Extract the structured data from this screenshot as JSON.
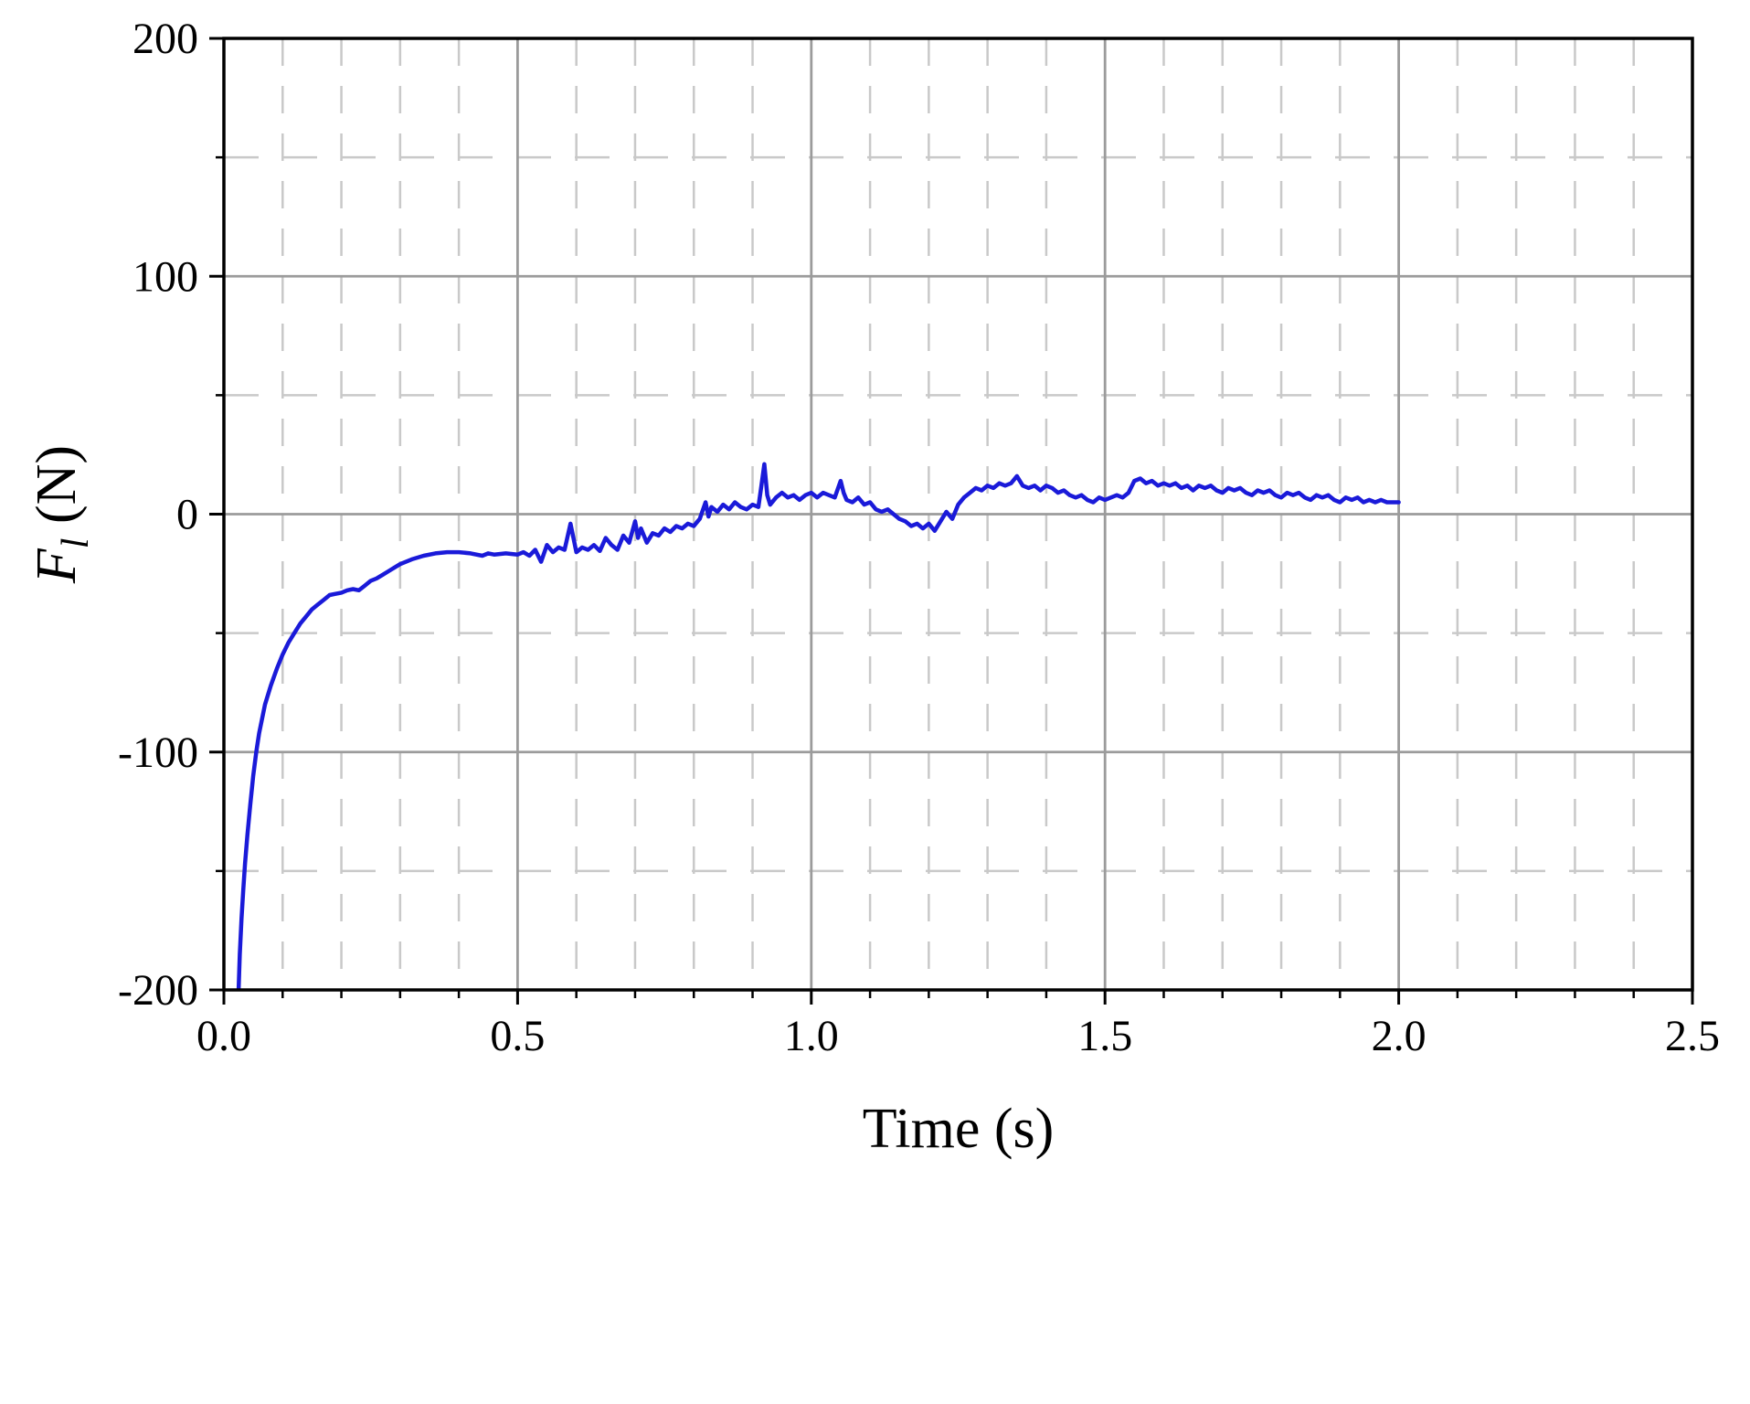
{
  "figure": {
    "background": "#ffffff",
    "frame_color": "#000000"
  },
  "chart_data": {
    "type": "line",
    "title": "",
    "xlabel": "Time (s)",
    "ylabel": "F_l (N)",
    "ylabel_parts": {
      "var": "F",
      "sub": "l",
      "rest": " (N)"
    },
    "xlim": [
      0.0,
      2.5
    ],
    "ylim": [
      -200,
      200
    ],
    "x_major_ticks": [
      0.0,
      0.5,
      1.0,
      1.5,
      2.0,
      2.5
    ],
    "x_tick_labels": [
      "0.0",
      "0.5",
      "1.0",
      "1.5",
      "2.0",
      "2.5"
    ],
    "x_minor_step": 0.1,
    "y_major_ticks": [
      -200,
      -100,
      0,
      100,
      200
    ],
    "y_tick_labels": [
      "-200",
      "-100",
      "0",
      "100",
      "200"
    ],
    "y_minor_step": 50,
    "grid": {
      "major": true,
      "minor": true,
      "major_color": "#9b9b9b",
      "minor_color": "#c9c9c9",
      "major_style": "solid",
      "minor_style": "dashed"
    },
    "legend": "none",
    "series": [
      {
        "name": "F_l",
        "color": "#1a1ad9",
        "points": [
          [
            0.025,
            -200
          ],
          [
            0.027,
            -185
          ],
          [
            0.03,
            -170
          ],
          [
            0.033,
            -158
          ],
          [
            0.036,
            -147
          ],
          [
            0.04,
            -135
          ],
          [
            0.045,
            -122
          ],
          [
            0.05,
            -110
          ],
          [
            0.055,
            -100
          ],
          [
            0.06,
            -92
          ],
          [
            0.065,
            -86
          ],
          [
            0.07,
            -80
          ],
          [
            0.075,
            -76
          ],
          [
            0.08,
            -72
          ],
          [
            0.09,
            -65
          ],
          [
            0.1,
            -59
          ],
          [
            0.11,
            -54
          ],
          [
            0.12,
            -50
          ],
          [
            0.13,
            -46
          ],
          [
            0.14,
            -43
          ],
          [
            0.15,
            -40
          ],
          [
            0.16,
            -38
          ],
          [
            0.17,
            -36
          ],
          [
            0.18,
            -34
          ],
          [
            0.19,
            -33.5
          ],
          [
            0.2,
            -33
          ],
          [
            0.21,
            -32
          ],
          [
            0.22,
            -31.5
          ],
          [
            0.23,
            -32
          ],
          [
            0.24,
            -30
          ],
          [
            0.25,
            -28
          ],
          [
            0.26,
            -27
          ],
          [
            0.27,
            -25.5
          ],
          [
            0.28,
            -24
          ],
          [
            0.29,
            -22.5
          ],
          [
            0.3,
            -21
          ],
          [
            0.32,
            -19
          ],
          [
            0.34,
            -17.5
          ],
          [
            0.36,
            -16.5
          ],
          [
            0.38,
            -16
          ],
          [
            0.4,
            -16
          ],
          [
            0.42,
            -16.5
          ],
          [
            0.44,
            -17.5
          ],
          [
            0.45,
            -16.5
          ],
          [
            0.46,
            -17
          ],
          [
            0.48,
            -16.5
          ],
          [
            0.5,
            -17
          ],
          [
            0.51,
            -16
          ],
          [
            0.52,
            -17.5
          ],
          [
            0.53,
            -15
          ],
          [
            0.54,
            -20
          ],
          [
            0.55,
            -13
          ],
          [
            0.56,
            -16
          ],
          [
            0.57,
            -14
          ],
          [
            0.58,
            -15
          ],
          [
            0.59,
            -4
          ],
          [
            0.6,
            -16
          ],
          [
            0.61,
            -14
          ],
          [
            0.62,
            -15
          ],
          [
            0.63,
            -13
          ],
          [
            0.64,
            -15.5
          ],
          [
            0.65,
            -10
          ],
          [
            0.66,
            -13
          ],
          [
            0.67,
            -15
          ],
          [
            0.68,
            -9
          ],
          [
            0.69,
            -12
          ],
          [
            0.7,
            -3
          ],
          [
            0.705,
            -10
          ],
          [
            0.71,
            -6
          ],
          [
            0.72,
            -12
          ],
          [
            0.73,
            -8
          ],
          [
            0.74,
            -9
          ],
          [
            0.75,
            -6
          ],
          [
            0.76,
            -7.5
          ],
          [
            0.77,
            -5
          ],
          [
            0.78,
            -6
          ],
          [
            0.79,
            -4
          ],
          [
            0.8,
            -5
          ],
          [
            0.81,
            -2
          ],
          [
            0.82,
            5
          ],
          [
            0.825,
            -1
          ],
          [
            0.83,
            3
          ],
          [
            0.84,
            1
          ],
          [
            0.85,
            4
          ],
          [
            0.86,
            2
          ],
          [
            0.87,
            5
          ],
          [
            0.88,
            3
          ],
          [
            0.89,
            2
          ],
          [
            0.9,
            4
          ],
          [
            0.91,
            3
          ],
          [
            0.915,
            12
          ],
          [
            0.92,
            21
          ],
          [
            0.925,
            8
          ],
          [
            0.93,
            4
          ],
          [
            0.94,
            7
          ],
          [
            0.95,
            9
          ],
          [
            0.96,
            7
          ],
          [
            0.97,
            8
          ],
          [
            0.98,
            6
          ],
          [
            0.99,
            8
          ],
          [
            1.0,
            9
          ],
          [
            1.01,
            7
          ],
          [
            1.02,
            9
          ],
          [
            1.03,
            8
          ],
          [
            1.04,
            7
          ],
          [
            1.05,
            14
          ],
          [
            1.055,
            9
          ],
          [
            1.06,
            6
          ],
          [
            1.07,
            5
          ],
          [
            1.08,
            7
          ],
          [
            1.09,
            4
          ],
          [
            1.1,
            5
          ],
          [
            1.11,
            2
          ],
          [
            1.12,
            1
          ],
          [
            1.13,
            2
          ],
          [
            1.14,
            0
          ],
          [
            1.15,
            -2
          ],
          [
            1.16,
            -3
          ],
          [
            1.17,
            -5
          ],
          [
            1.18,
            -4
          ],
          [
            1.19,
            -6
          ],
          [
            1.2,
            -4
          ],
          [
            1.21,
            -7
          ],
          [
            1.22,
            -3
          ],
          [
            1.23,
            1
          ],
          [
            1.24,
            -2
          ],
          [
            1.25,
            4
          ],
          [
            1.26,
            7
          ],
          [
            1.27,
            9
          ],
          [
            1.28,
            11
          ],
          [
            1.29,
            10
          ],
          [
            1.3,
            12
          ],
          [
            1.31,
            11
          ],
          [
            1.32,
            13
          ],
          [
            1.33,
            12
          ],
          [
            1.34,
            13
          ],
          [
            1.35,
            16
          ],
          [
            1.36,
            12
          ],
          [
            1.37,
            11
          ],
          [
            1.38,
            12
          ],
          [
            1.39,
            10
          ],
          [
            1.4,
            12
          ],
          [
            1.41,
            11
          ],
          [
            1.42,
            9
          ],
          [
            1.43,
            10
          ],
          [
            1.44,
            8
          ],
          [
            1.45,
            7
          ],
          [
            1.46,
            8
          ],
          [
            1.47,
            6
          ],
          [
            1.48,
            5
          ],
          [
            1.49,
            7
          ],
          [
            1.5,
            6
          ],
          [
            1.51,
            7
          ],
          [
            1.52,
            8
          ],
          [
            1.53,
            7
          ],
          [
            1.54,
            9
          ],
          [
            1.55,
            14
          ],
          [
            1.56,
            15
          ],
          [
            1.57,
            13
          ],
          [
            1.58,
            14
          ],
          [
            1.59,
            12
          ],
          [
            1.6,
            13
          ],
          [
            1.61,
            12
          ],
          [
            1.62,
            13
          ],
          [
            1.63,
            11
          ],
          [
            1.64,
            12
          ],
          [
            1.65,
            10
          ],
          [
            1.66,
            12
          ],
          [
            1.67,
            11
          ],
          [
            1.68,
            12
          ],
          [
            1.69,
            10
          ],
          [
            1.7,
            9
          ],
          [
            1.71,
            11
          ],
          [
            1.72,
            10
          ],
          [
            1.73,
            11
          ],
          [
            1.74,
            9
          ],
          [
            1.75,
            8
          ],
          [
            1.76,
            10
          ],
          [
            1.77,
            9
          ],
          [
            1.78,
            10
          ],
          [
            1.79,
            8
          ],
          [
            1.8,
            7
          ],
          [
            1.81,
            9
          ],
          [
            1.82,
            8
          ],
          [
            1.83,
            9
          ],
          [
            1.84,
            7
          ],
          [
            1.85,
            6
          ],
          [
            1.86,
            8
          ],
          [
            1.87,
            7
          ],
          [
            1.88,
            8
          ],
          [
            1.89,
            6
          ],
          [
            1.9,
            5
          ],
          [
            1.91,
            7
          ],
          [
            1.92,
            6
          ],
          [
            1.93,
            7
          ],
          [
            1.94,
            5
          ],
          [
            1.95,
            6
          ],
          [
            1.96,
            5
          ],
          [
            1.97,
            6
          ],
          [
            1.98,
            5
          ],
          [
            1.99,
            5
          ],
          [
            2.0,
            5
          ]
        ]
      }
    ]
  }
}
